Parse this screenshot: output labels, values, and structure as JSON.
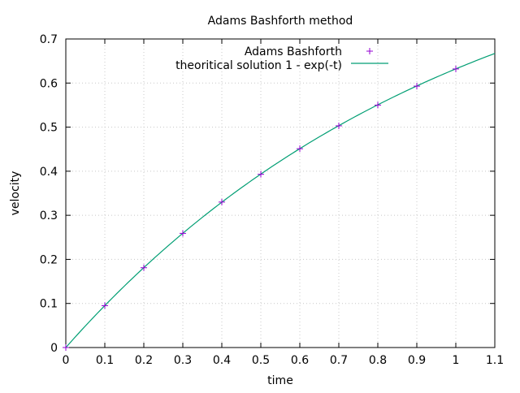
{
  "chart_data": {
    "type": "line",
    "title": "Adams Bashforth method",
    "xlabel": "time",
    "ylabel": "velocity",
    "xlim": [
      0,
      1.1
    ],
    "ylim": [
      0,
      0.7
    ],
    "grid": true,
    "legend_position": "top-right-inside",
    "x_ticks": [
      "0",
      "0.1",
      "0.2",
      "0.3",
      "0.4",
      "0.5",
      "0.6",
      "0.7",
      "0.8",
      "0.9",
      "1",
      "1.1"
    ],
    "y_ticks": [
      "0",
      "0.1",
      "0.2",
      "0.3",
      "0.4",
      "0.5",
      "0.6",
      "0.7"
    ],
    "series": [
      {
        "name": "Adams Bashforth",
        "style": "points",
        "marker": "+",
        "color": "#9400d3",
        "x": [
          0,
          0.1,
          0.2,
          0.3,
          0.4,
          0.5,
          0.6,
          0.7,
          0.8,
          0.9,
          1.0
        ],
        "values": [
          0,
          0.095,
          0.181,
          0.259,
          0.33,
          0.393,
          0.451,
          0.503,
          0.55,
          0.593,
          0.632
        ]
      },
      {
        "name": "theoritical solution 1 - exp(-t)",
        "style": "line",
        "color": "#009e73",
        "function": "1 - exp(-t)",
        "x_range": [
          0,
          1.1
        ]
      }
    ]
  }
}
